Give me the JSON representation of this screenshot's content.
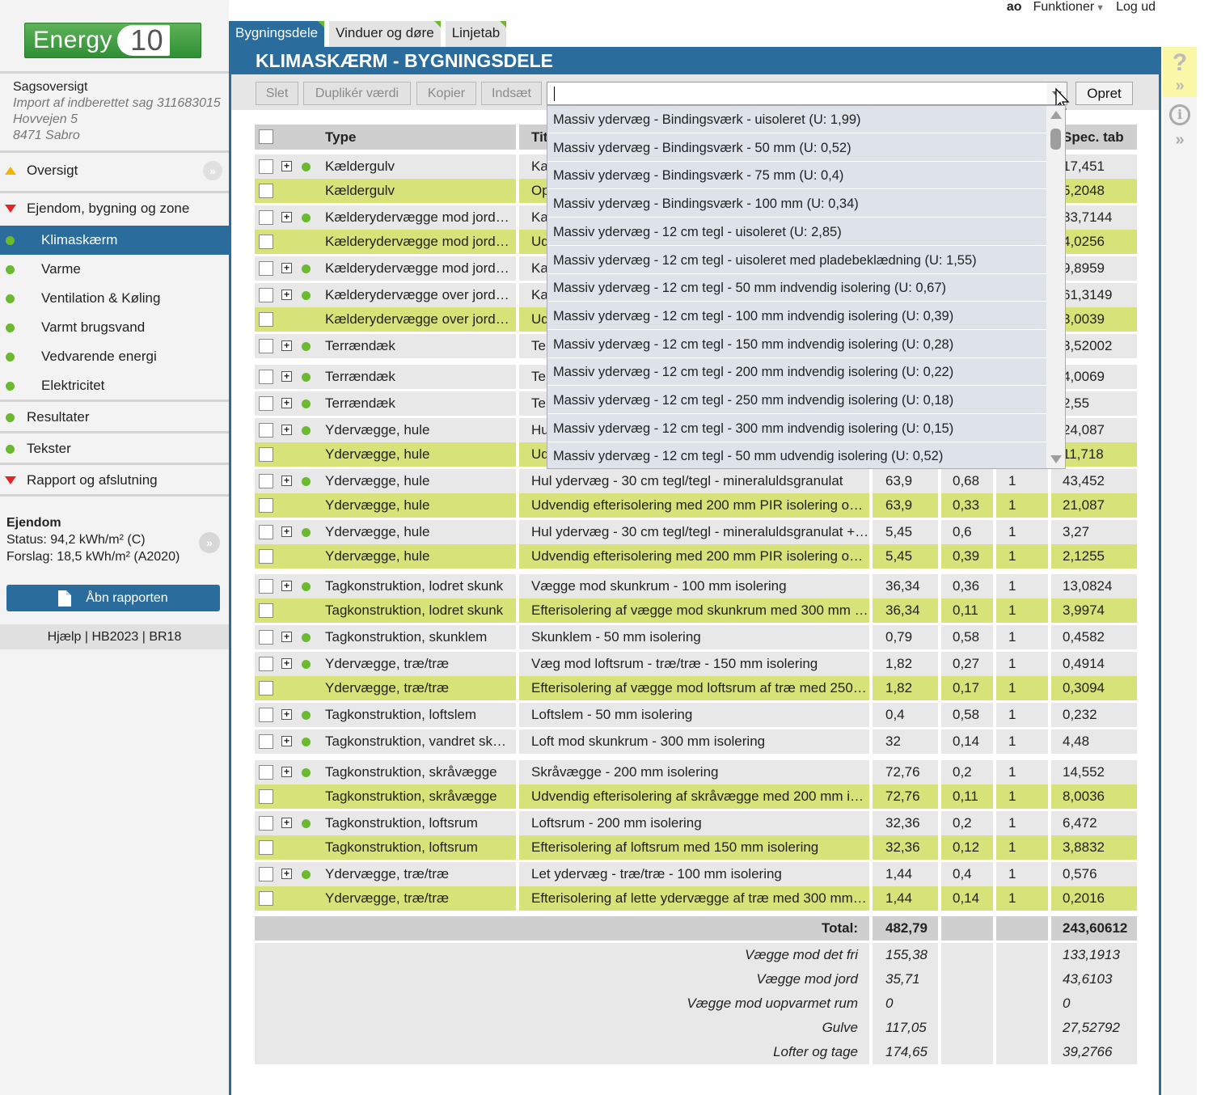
{
  "user": {
    "initials": "ao",
    "functions_label": "Funktioner",
    "logout_label": "Log ud"
  },
  "logo": {
    "text": "Energy",
    "version": "10"
  },
  "case": {
    "overview_label": "Sagsoversigt",
    "import_text": "Import af indberettet sag 311683015",
    "address": "Hovvejen 5",
    "city": "8471 Sabro"
  },
  "nav": {
    "oversigt": "Oversigt",
    "ejendom": "Ejendom, bygning og zone",
    "items": [
      "Klimaskærm",
      "Varme",
      "Ventilation & Køling",
      "Varmt brugsvand",
      "Vedvarende energi",
      "Elektricitet"
    ],
    "resultater": "Resultater",
    "tekster": "Tekster",
    "rapport": "Rapport og afslutning"
  },
  "property": {
    "heading": "Ejendom",
    "status": "Status: 94,2 kWh/m² (C)",
    "proposal": "Forslag: 18,5 kWh/m² (A2020)"
  },
  "open_report_label": "Åbn rapporten",
  "help_bar": "Hjælp | HB2023 | BR18",
  "tabs": [
    "Bygningsdele",
    "Vinduer og døre",
    "Linjetab"
  ],
  "page_title": "KLIMASKÆRM - BYGNINGSDELE",
  "toolbar": {
    "delete": "Slet",
    "duplicate": "Duplikér værdi",
    "copy": "Kopier",
    "paste": "Indsæt",
    "create": "Opret"
  },
  "dropdown_items": [
    "Massiv ydervæg - Bindingsværk - uisoleret (U: 1,99)",
    "Massiv ydervæg - Bindingsværk - 50 mm (U: 0,52)",
    "Massiv ydervæg - Bindingsværk - 75 mm (U: 0,4)",
    "Massiv ydervæg - Bindingsværk - 100 mm (U: 0,34)",
    "Massiv ydervæg - 12 cm tegl - uisoleret (U: 2,85)",
    "Massiv ydervæg - 12 cm tegl - uisoleret med pladebeklædning (U: 1,55)",
    "Massiv ydervæg - 12 cm tegl - 50 mm indvendig isolering (U: 0,67)",
    "Massiv ydervæg - 12 cm tegl - 100 mm indvendig isolering (U: 0,39)",
    "Massiv ydervæg - 12 cm tegl - 150 mm indvendig isolering (U: 0,28)",
    "Massiv ydervæg - 12 cm tegl - 200 mm indvendig isolering (U: 0,22)",
    "Massiv ydervæg - 12 cm tegl - 250 mm indvendig isolering (U: 0,18)",
    "Massiv ydervæg - 12 cm tegl - 300 mm indvendig isolering (U: 0,15)",
    "Massiv ydervæg - 12 cm tegl - 50 mm udvendig isolering (U: 0,52)"
  ],
  "table": {
    "headers": {
      "type": "Type",
      "title": "Titel",
      "spec": "Spec. tab"
    },
    "rows": [
      {
        "type": "Kældergulv",
        "title": "Ka",
        "area": "",
        "u": "",
        "n": "",
        "spec": "17,451",
        "green": false,
        "plus": true
      },
      {
        "type": "Kældergulv",
        "title": "Op",
        "area": "",
        "u": "",
        "n": "",
        "spec": "5,2048",
        "green": true,
        "plus": false
      },
      {
        "type": "Kælderydervægge mod jord…",
        "title": "Ka",
        "area": "",
        "u": "",
        "n": "",
        "spec": "33,7144",
        "green": false,
        "plus": true
      },
      {
        "type": "Kælderydervægge mod jord…",
        "title": "Ud",
        "area": "",
        "u": "",
        "n": "",
        "spec": "4,0256",
        "green": true,
        "plus": false
      },
      {
        "type": "Kælderydervægge mod jord…",
        "title": "Ka",
        "area": "",
        "u": "",
        "n": "",
        "spec": "9,8959",
        "green": false,
        "plus": true
      },
      {
        "type": "Kælderydervægge over jord…",
        "title": "Ka",
        "area": "",
        "u": "",
        "n": "",
        "spec": "61,3149",
        "green": false,
        "plus": true
      },
      {
        "type": "Kælderydervægge over jord…",
        "title": "Ud",
        "area": "",
        "u": "",
        "n": "",
        "spec": "3,0039",
        "green": true,
        "plus": false
      },
      {
        "type": "Terrændæk",
        "title": "Te",
        "area": "",
        "u": "",
        "n": "",
        "spec": "3,52002",
        "green": false,
        "plus": true
      },
      {
        "type": "Terrændæk",
        "title": "Te",
        "area": "",
        "u": "",
        "n": "",
        "spec": "4,0069",
        "green": false,
        "plus": true
      },
      {
        "type": "Terrændæk",
        "title": "Te",
        "area": "",
        "u": "",
        "n": "",
        "spec": "2,55",
        "green": false,
        "plus": true
      },
      {
        "type": "Ydervægge, hule",
        "title": "Hu",
        "area": "",
        "u": "",
        "n": "",
        "spec": "24,087",
        "green": false,
        "plus": true
      },
      {
        "type": "Ydervægge, hule",
        "title": "Ud",
        "area": "",
        "u": "",
        "n": "",
        "spec": "11,718",
        "green": true,
        "plus": false
      },
      {
        "type": "Ydervægge, hule",
        "title": "Hul ydervæg - 30 cm tegl/tegl - mineraluldsgranulat",
        "area": "63,9",
        "u": "0,68",
        "n": "1",
        "spec": "43,452",
        "green": false,
        "plus": true
      },
      {
        "type": "Ydervægge, hule",
        "title": "Udvendig efterisolering med 200 mm PIR isolering o…",
        "area": "63,9",
        "u": "0,33",
        "n": "1",
        "spec": "21,087",
        "green": true,
        "plus": false
      },
      {
        "type": "Ydervægge, hule",
        "title": "Hul ydervæg - 30 cm tegl/tegl - mineraluldsgranulat +…",
        "area": "5,45",
        "u": "0,6",
        "n": "1",
        "spec": "3,27",
        "green": false,
        "plus": true
      },
      {
        "type": "Ydervægge, hule",
        "title": "Udvendig efterisolering med 200 mm PIR isolering o…",
        "area": "5,45",
        "u": "0,39",
        "n": "1",
        "spec": "2,1255",
        "green": true,
        "plus": false
      },
      {
        "type": "Tagkonstruktion, lodret skunk",
        "title": "Vægge mod skunkrum - 100 mm isolering",
        "area": "36,34",
        "u": "0,36",
        "n": "1",
        "spec": "13,0824",
        "green": false,
        "plus": true
      },
      {
        "type": "Tagkonstruktion, lodret skunk",
        "title": "Efterisolering af vægge mod skunkrum med 300 mm …",
        "area": "36,34",
        "u": "0,11",
        "n": "1",
        "spec": "3,9974",
        "green": true,
        "plus": false
      },
      {
        "type": "Tagkonstruktion, skunklem",
        "title": "Skunklem - 50 mm isolering",
        "area": "0,79",
        "u": "0,58",
        "n": "1",
        "spec": "0,4582",
        "green": false,
        "plus": true
      },
      {
        "type": "Ydervægge, træ/træ",
        "title": "Væg mod loftsrum - træ/træ - 150 mm isolering",
        "area": "1,82",
        "u": "0,27",
        "n": "1",
        "spec": "0,4914",
        "green": false,
        "plus": true
      },
      {
        "type": "Ydervægge, træ/træ",
        "title": "Efterisolering af vægge mod loftsrum af træ med 250…",
        "area": "1,82",
        "u": "0,17",
        "n": "1",
        "spec": "0,3094",
        "green": true,
        "plus": false
      },
      {
        "type": "Tagkonstruktion, loftslem",
        "title": "Loftslem - 50 mm isolering",
        "area": "0,4",
        "u": "0,58",
        "n": "1",
        "spec": "0,232",
        "green": false,
        "plus": true
      },
      {
        "type": "Tagkonstruktion, vandret sk…",
        "title": "Loft mod skunkrum - 300 mm isolering",
        "area": "32",
        "u": "0,14",
        "n": "1",
        "spec": "4,48",
        "green": false,
        "plus": true
      },
      {
        "type": "Tagkonstruktion, skråvægge",
        "title": "Skråvægge - 200 mm isolering",
        "area": "72,76",
        "u": "0,2",
        "n": "1",
        "spec": "14,552",
        "green": false,
        "plus": true
      },
      {
        "type": "Tagkonstruktion, skråvægge",
        "title": "Udvendig efterisolering af skråvægge med 200 mm i…",
        "area": "72,76",
        "u": "0,11",
        "n": "1",
        "spec": "8,0036",
        "green": true,
        "plus": false
      },
      {
        "type": "Tagkonstruktion, loftsrum",
        "title": "Loftsrum - 200 mm isolering",
        "area": "32,36",
        "u": "0,2",
        "n": "1",
        "spec": "6,472",
        "green": false,
        "plus": true
      },
      {
        "type": "Tagkonstruktion, loftsrum",
        "title": "Efterisolering af loftsrum med 150 mm isolering",
        "area": "32,36",
        "u": "0,12",
        "n": "1",
        "spec": "3,8832",
        "green": true,
        "plus": false
      },
      {
        "type": "Ydervægge, træ/træ",
        "title": "Let ydervæg - træ/træ - 100 mm isolering",
        "area": "1,44",
        "u": "0,4",
        "n": "1",
        "spec": "0,576",
        "green": false,
        "plus": true
      },
      {
        "type": "Ydervægge, træ/træ",
        "title": "Efterisolering af lette ydervægge af træ med 300 mm…",
        "area": "1,44",
        "u": "0,14",
        "n": "1",
        "spec": "0,2016",
        "green": true,
        "plus": false
      }
    ],
    "total": {
      "label": "Total:",
      "area": "482,79",
      "spec": "243,60612"
    },
    "subtotals": [
      {
        "label": "Vægge mod det fri",
        "area": "155,38",
        "spec": "133,1913"
      },
      {
        "label": "Vægge mod jord",
        "area": "35,71",
        "spec": "43,6103"
      },
      {
        "label": "Vægge mod uopvarmet rum",
        "area": "0",
        "spec": "0"
      },
      {
        "label": "Gulve",
        "area": "117,05",
        "spec": "27,52792"
      },
      {
        "label": "Lofter og tage",
        "area": "174,65",
        "spec": "39,2766"
      }
    ]
  }
}
